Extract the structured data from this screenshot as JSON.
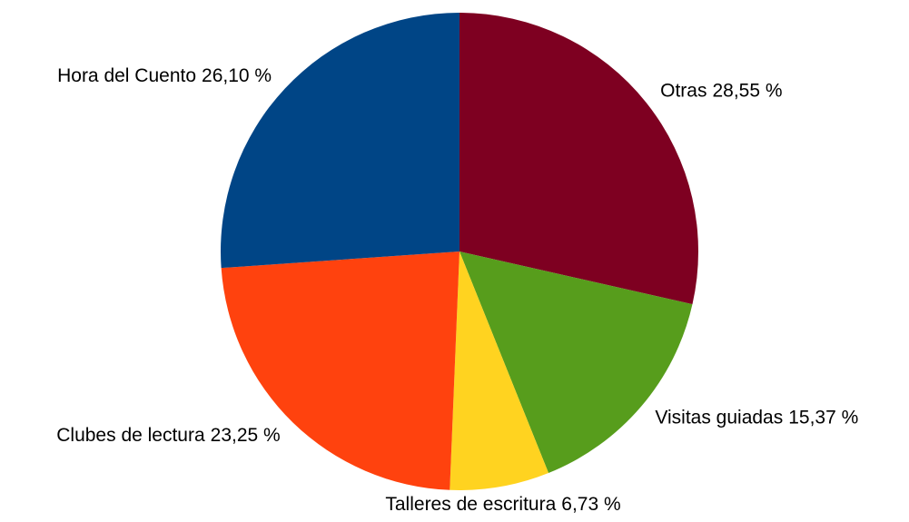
{
  "chart_data": {
    "type": "pie",
    "categories": [
      "Otras",
      "Visitas guiadas",
      "Talleres de escritura",
      "Clubes de lectura",
      "Hora del Cuento"
    ],
    "values": [
      28.55,
      15.37,
      6.73,
      23.25,
      26.1
    ],
    "value_labels": [
      "28,55 %",
      "15,37 %",
      "6,73 %",
      "23,25 %",
      "26,10 %"
    ],
    "colors": [
      "#7e0021",
      "#579d1c",
      "#ffd320",
      "#ff420e",
      "#004586"
    ]
  }
}
